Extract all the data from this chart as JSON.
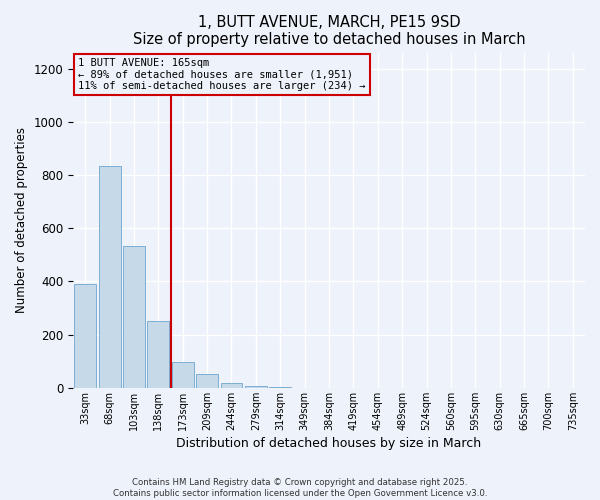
{
  "title": "1, BUTT AVENUE, MARCH, PE15 9SD",
  "subtitle": "Size of property relative to detached houses in March",
  "xlabel": "Distribution of detached houses by size in March",
  "ylabel": "Number of detached properties",
  "bar_color": "#c5d9e8",
  "bar_edge_color": "#7bafd4",
  "background_color": "#eef2fa",
  "grid_color": "#ffffff",
  "categories": [
    "33sqm",
    "68sqm",
    "103sqm",
    "138sqm",
    "173sqm",
    "209sqm",
    "244sqm",
    "279sqm",
    "314sqm",
    "349sqm",
    "384sqm",
    "419sqm",
    "454sqm",
    "489sqm",
    "524sqm",
    "560sqm",
    "595sqm",
    "630sqm",
    "665sqm",
    "700sqm",
    "735sqm"
  ],
  "values": [
    390,
    835,
    535,
    250,
    98,
    53,
    18,
    8,
    3,
    1,
    0,
    0,
    0,
    0,
    0,
    0,
    0,
    0,
    0,
    0,
    0
  ],
  "ylim": [
    0,
    1260
  ],
  "yticks": [
    0,
    200,
    400,
    600,
    800,
    1000,
    1200
  ],
  "vline_bin": 4,
  "vline_color": "#cc0000",
  "annotation_title": "1 BUTT AVENUE: 165sqm",
  "annotation_line1": "← 89% of detached houses are smaller (1,951)",
  "annotation_line2": "11% of semi-detached houses are larger (234) →",
  "annotation_box_color": "#cc0000",
  "footer_line1": "Contains HM Land Registry data © Crown copyright and database right 2025.",
  "footer_line2": "Contains public sector information licensed under the Open Government Licence v3.0."
}
